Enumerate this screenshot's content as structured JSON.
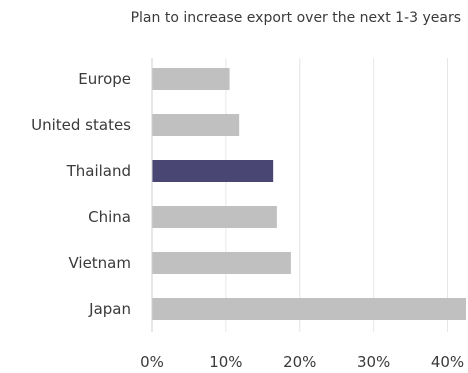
{
  "chart_data": {
    "type": "bar",
    "orientation": "horizontal",
    "title": "Plan to increase export over the next 1-3 years",
    "categories": [
      "Europe",
      "United states",
      "Thailand",
      "China",
      "Vietnam",
      "Japan"
    ],
    "values": [
      10.5,
      11.8,
      16.4,
      16.9,
      18.8,
      42.5
    ],
    "highlight": "Thailand",
    "xlim": [
      0,
      42.5
    ],
    "xticks": [
      0,
      10,
      20,
      30,
      40
    ],
    "xtick_labels": [
      "0%",
      "10%",
      "20%",
      "30%",
      "40%"
    ],
    "grid": true,
    "legend": "none",
    "colors": {
      "bar": "#c0c0c0",
      "highlight": "#4a4673",
      "grid": "#e6e6e6"
    }
  }
}
